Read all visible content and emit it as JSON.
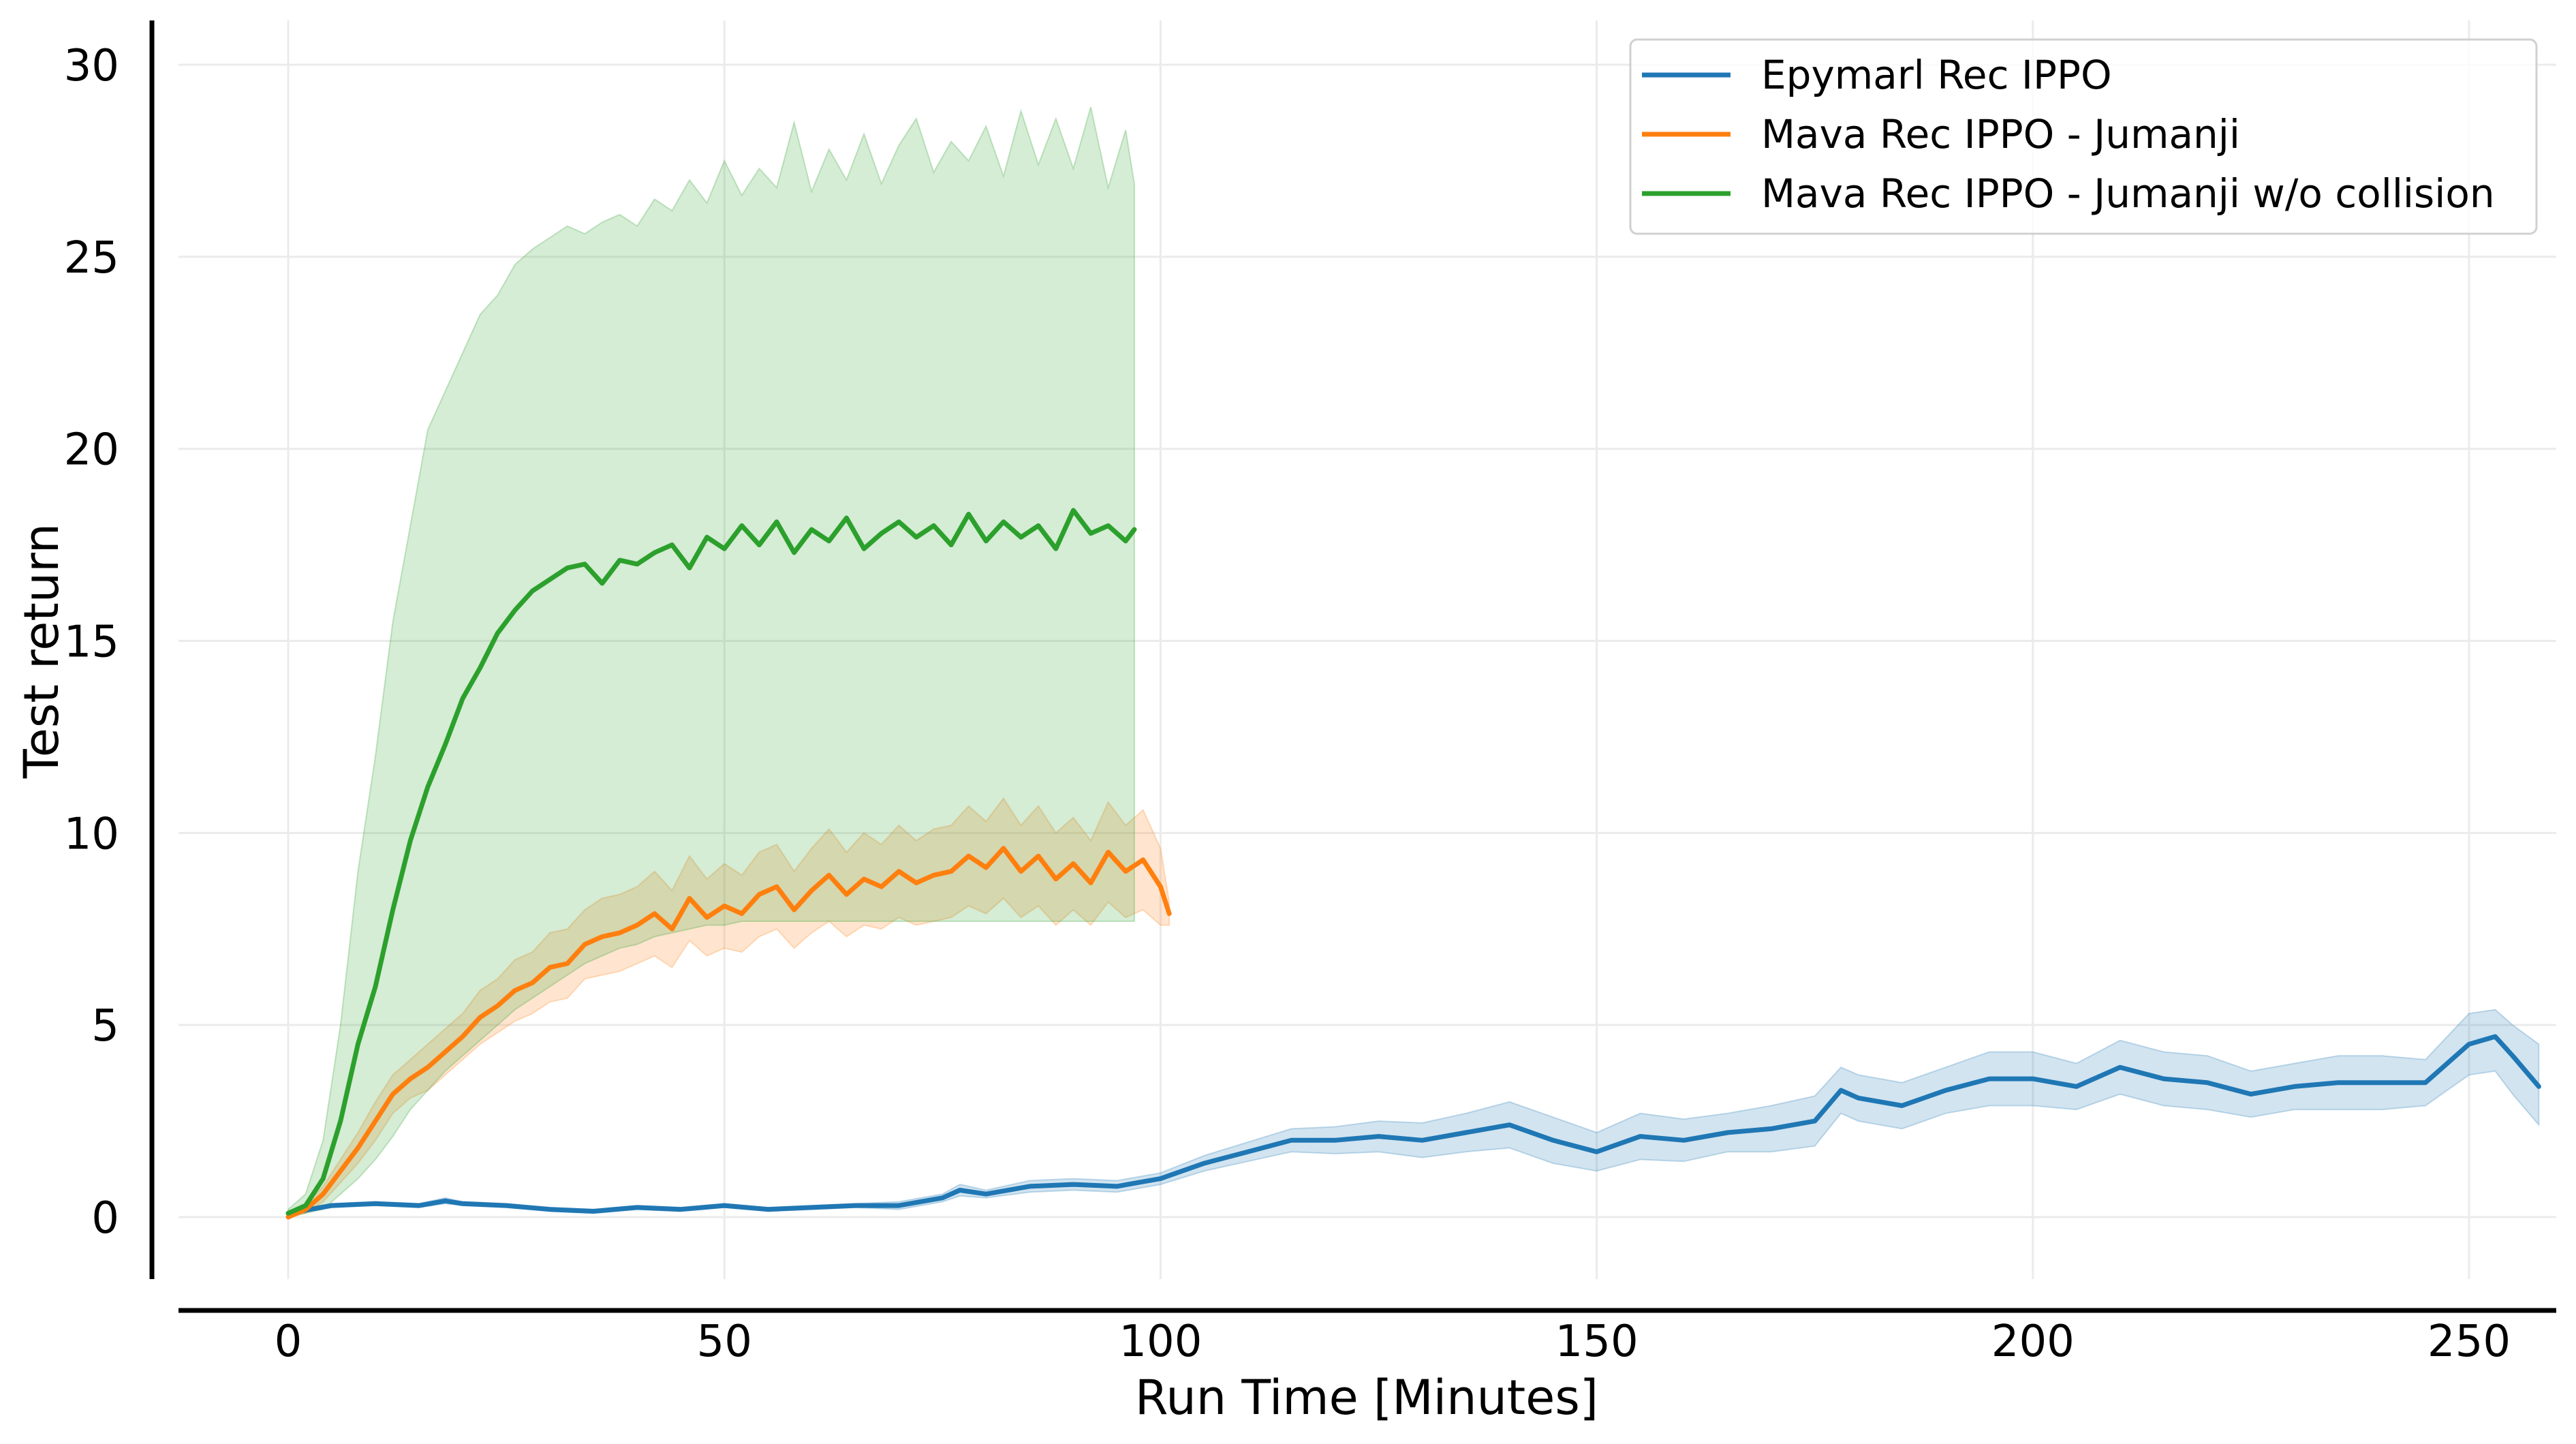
{
  "chart_data": {
    "type": "line",
    "title": "",
    "xlabel": "Run Time [Minutes]",
    "ylabel": "Test return",
    "xlim": [
      -13,
      270
    ],
    "ylim": [
      -1.7,
      31.2
    ],
    "x_ticks": [
      0,
      50,
      100,
      150,
      200,
      250
    ],
    "y_ticks": [
      0,
      5,
      10,
      15,
      20,
      25,
      30
    ],
    "grid": true,
    "legend_position": "top-right",
    "series": [
      {
        "name": "Epymarl Rec IPPO",
        "color": "#1f77b4",
        "x": [
          0,
          5,
          10,
          15,
          18,
          20,
          25,
          30,
          35,
          40,
          45,
          50,
          55,
          60,
          65,
          70,
          75,
          77,
          80,
          85,
          90,
          95,
          100,
          105,
          110,
          115,
          120,
          125,
          130,
          135,
          140,
          145,
          150,
          155,
          160,
          165,
          170,
          175,
          178,
          180,
          185,
          190,
          195,
          200,
          205,
          210,
          215,
          220,
          225,
          230,
          235,
          240,
          245,
          250,
          253,
          255,
          258
        ],
        "y": [
          0.1,
          0.3,
          0.35,
          0.3,
          0.42,
          0.35,
          0.3,
          0.2,
          0.15,
          0.25,
          0.2,
          0.3,
          0.2,
          0.25,
          0.3,
          0.3,
          0.5,
          0.7,
          0.6,
          0.8,
          0.85,
          0.8,
          1.0,
          1.4,
          1.7,
          2.0,
          2.0,
          2.1,
          2.0,
          2.2,
          2.4,
          2.0,
          1.7,
          2.1,
          2.0,
          2.2,
          2.3,
          2.5,
          3.3,
          3.1,
          2.9,
          3.3,
          3.6,
          3.6,
          3.4,
          3.9,
          3.6,
          3.5,
          3.2,
          3.4,
          3.5,
          3.5,
          3.5,
          4.5,
          4.7,
          4.2,
          3.4
        ],
        "lower": [
          0.05,
          0.25,
          0.3,
          0.25,
          0.35,
          0.3,
          0.25,
          0.15,
          0.1,
          0.2,
          0.15,
          0.25,
          0.15,
          0.2,
          0.25,
          0.2,
          0.4,
          0.55,
          0.5,
          0.65,
          0.7,
          0.65,
          0.85,
          1.2,
          1.45,
          1.7,
          1.65,
          1.7,
          1.55,
          1.7,
          1.8,
          1.4,
          1.2,
          1.5,
          1.45,
          1.7,
          1.7,
          1.85,
          2.7,
          2.5,
          2.3,
          2.7,
          2.9,
          2.9,
          2.8,
          3.2,
          2.9,
          2.8,
          2.6,
          2.8,
          2.8,
          2.8,
          2.9,
          3.7,
          3.8,
          3.2,
          2.4
        ],
        "upper": [
          0.15,
          0.35,
          0.4,
          0.35,
          0.5,
          0.4,
          0.35,
          0.25,
          0.2,
          0.3,
          0.25,
          0.35,
          0.25,
          0.3,
          0.35,
          0.4,
          0.6,
          0.85,
          0.7,
          0.95,
          1.0,
          0.95,
          1.15,
          1.6,
          1.95,
          2.3,
          2.35,
          2.5,
          2.45,
          2.7,
          3.0,
          2.6,
          2.2,
          2.7,
          2.55,
          2.7,
          2.9,
          3.15,
          3.9,
          3.7,
          3.5,
          3.9,
          4.3,
          4.3,
          4.0,
          4.6,
          4.3,
          4.2,
          3.8,
          4.0,
          4.2,
          4.2,
          4.1,
          5.3,
          5.4,
          5.0,
          4.5
        ]
      },
      {
        "name": "Mava Rec IPPO - Jumanji",
        "color": "#ff7f0e",
        "x": [
          0,
          2,
          4,
          6,
          8,
          10,
          12,
          14,
          16,
          18,
          20,
          22,
          24,
          26,
          28,
          30,
          32,
          34,
          36,
          38,
          40,
          42,
          44,
          46,
          48,
          50,
          52,
          54,
          56,
          58,
          60,
          62,
          64,
          66,
          68,
          70,
          72,
          74,
          76,
          78,
          80,
          82,
          84,
          86,
          88,
          90,
          92,
          94,
          96,
          98,
          100,
          101
        ],
        "y": [
          0.0,
          0.2,
          0.6,
          1.2,
          1.8,
          2.5,
          3.2,
          3.6,
          3.9,
          4.3,
          4.7,
          5.2,
          5.5,
          5.9,
          6.1,
          6.5,
          6.6,
          7.1,
          7.3,
          7.4,
          7.6,
          7.9,
          7.5,
          8.3,
          7.8,
          8.1,
          7.9,
          8.4,
          8.6,
          8.0,
          8.5,
          8.9,
          8.4,
          8.8,
          8.6,
          9.0,
          8.7,
          8.9,
          9.0,
          9.4,
          9.1,
          9.6,
          9.0,
          9.4,
          8.8,
          9.2,
          8.7,
          9.5,
          9.0,
          9.3,
          8.6,
          7.9
        ],
        "lower": [
          0.0,
          0.1,
          0.4,
          0.9,
          1.4,
          2.0,
          2.7,
          3.1,
          3.3,
          3.7,
          4.1,
          4.5,
          4.8,
          5.1,
          5.3,
          5.6,
          5.7,
          6.2,
          6.3,
          6.4,
          6.6,
          6.8,
          6.5,
          7.2,
          6.8,
          7.0,
          6.9,
          7.3,
          7.5,
          7.0,
          7.4,
          7.7,
          7.3,
          7.6,
          7.5,
          7.8,
          7.6,
          7.7,
          7.8,
          8.1,
          7.9,
          8.3,
          7.8,
          8.1,
          7.6,
          8.0,
          7.6,
          8.2,
          7.8,
          8.0,
          7.6,
          7.6
        ],
        "upper": [
          0.1,
          0.3,
          0.8,
          1.5,
          2.2,
          3.0,
          3.7,
          4.1,
          4.5,
          4.9,
          5.3,
          5.9,
          6.2,
          6.7,
          6.9,
          7.4,
          7.5,
          8.0,
          8.3,
          8.4,
          8.6,
          9.0,
          8.5,
          9.4,
          8.8,
          9.2,
          8.9,
          9.5,
          9.7,
          9.0,
          9.6,
          10.1,
          9.5,
          10.0,
          9.7,
          10.2,
          9.8,
          10.1,
          10.2,
          10.7,
          10.3,
          10.9,
          10.2,
          10.7,
          10.0,
          10.4,
          9.8,
          10.8,
          10.2,
          10.6,
          9.6,
          8.2
        ]
      },
      {
        "name": "Mava Rec IPPO - Jumanji w/o collision",
        "color": "#2ca02c",
        "x": [
          0,
          2,
          4,
          6,
          8,
          10,
          12,
          14,
          16,
          18,
          20,
          22,
          24,
          26,
          28,
          30,
          32,
          34,
          36,
          38,
          40,
          42,
          44,
          46,
          48,
          50,
          52,
          54,
          56,
          58,
          60,
          62,
          64,
          66,
          68,
          70,
          72,
          74,
          76,
          78,
          80,
          82,
          84,
          86,
          88,
          90,
          92,
          94,
          96,
          97
        ],
        "y": [
          0.1,
          0.3,
          1.0,
          2.5,
          4.5,
          6.0,
          8.0,
          9.8,
          11.2,
          12.3,
          13.5,
          14.3,
          15.2,
          15.8,
          16.3,
          16.6,
          16.9,
          17.0,
          16.5,
          17.1,
          17.0,
          17.3,
          17.5,
          16.9,
          17.7,
          17.4,
          18.0,
          17.5,
          18.1,
          17.3,
          17.9,
          17.6,
          18.2,
          17.4,
          17.8,
          18.1,
          17.7,
          18.0,
          17.5,
          18.3,
          17.6,
          18.1,
          17.7,
          18.0,
          17.4,
          18.4,
          17.8,
          18.0,
          17.6,
          17.9
        ],
        "lower": [
          0.0,
          0.1,
          0.2,
          0.6,
          1.0,
          1.5,
          2.1,
          2.8,
          3.3,
          3.8,
          4.2,
          4.6,
          5.0,
          5.4,
          5.7,
          6.0,
          6.3,
          6.6,
          6.8,
          7.0,
          7.1,
          7.3,
          7.4,
          7.5,
          7.6,
          7.6,
          7.7,
          7.7,
          7.7,
          7.7,
          7.7,
          7.7,
          7.7,
          7.7,
          7.7,
          7.7,
          7.7,
          7.7,
          7.7,
          7.7,
          7.7,
          7.7,
          7.7,
          7.7,
          7.7,
          7.7,
          7.7,
          7.7,
          7.7,
          7.7
        ],
        "upper": [
          0.2,
          0.6,
          2.0,
          5.0,
          9.0,
          12.0,
          15.5,
          18.0,
          20.5,
          21.5,
          22.5,
          23.5,
          24.0,
          24.8,
          25.2,
          25.5,
          25.8,
          25.6,
          25.9,
          26.1,
          25.8,
          26.5,
          26.2,
          27.0,
          26.4,
          27.5,
          26.6,
          27.3,
          26.8,
          28.5,
          26.7,
          27.8,
          27.0,
          28.2,
          26.9,
          27.9,
          28.6,
          27.2,
          28.0,
          27.5,
          28.4,
          27.1,
          28.8,
          27.4,
          28.6,
          27.3,
          28.9,
          26.8,
          28.3,
          26.9
        ]
      }
    ]
  }
}
